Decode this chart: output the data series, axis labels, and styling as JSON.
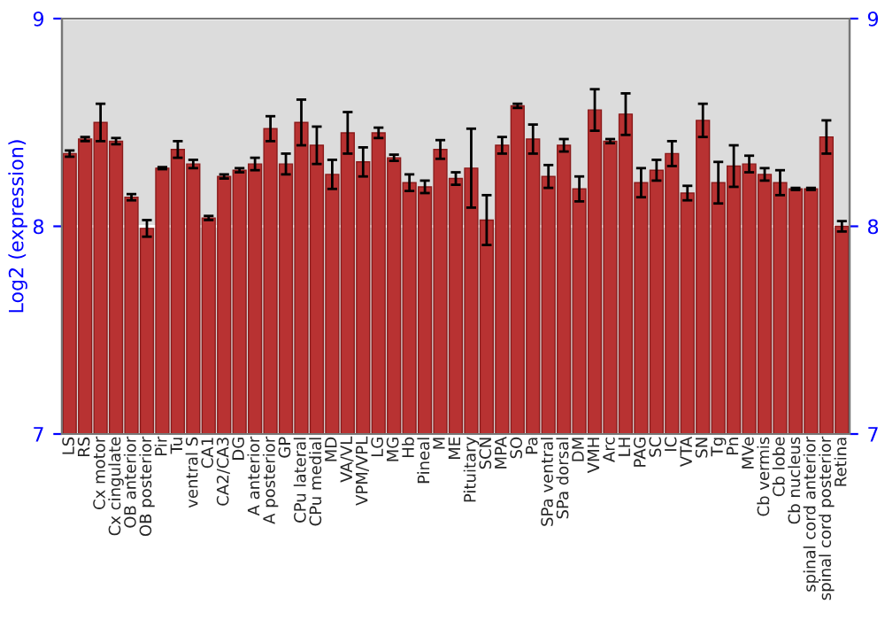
{
  "chart_data": {
    "type": "bar",
    "ylabel": "Log2 (expression)",
    "categories": [
      "LS",
      "RS",
      "Cx motor",
      "Cx cingulate",
      "OB anterior",
      "OB posterior",
      "Pir",
      "Tu",
      "ventral S",
      "CA1",
      "CA2/CA3",
      "DG",
      "A anterior",
      "A posterior",
      "GP",
      "CPu lateral",
      "CPu medial",
      "MD",
      "VA/VL",
      "VPM/VPL",
      "LG",
      "MG",
      "Hb",
      "Pineal",
      "M",
      "ME",
      "Pituitary",
      "SCN",
      "MPA",
      "SO",
      "Pa",
      "SPa ventral",
      "SPa dorsal",
      "DM",
      "VMH",
      "Arc",
      "LH",
      "PAG",
      "SC",
      "IC",
      "VTA",
      "SN",
      "Tg",
      "Pn",
      "MVe",
      "Cb vermis",
      "Cb lobe",
      "Cb nucleus",
      "spinal cord anterior",
      "spinal cord posterior",
      "Retina"
    ],
    "values": [
      8.35,
      8.42,
      8.5,
      8.41,
      8.14,
      7.99,
      8.28,
      8.37,
      8.3,
      8.04,
      8.24,
      8.27,
      8.3,
      8.47,
      8.3,
      8.5,
      8.39,
      8.25,
      8.45,
      8.31,
      8.45,
      8.33,
      8.21,
      8.19,
      8.37,
      8.23,
      8.28,
      8.03,
      8.39,
      8.58,
      8.42,
      8.24,
      8.39,
      8.18,
      8.56,
      8.41,
      8.54,
      8.21,
      8.27,
      8.35,
      8.16,
      8.51,
      8.21,
      8.29,
      8.3,
      8.25,
      8.21,
      8.18,
      8.18,
      8.43,
      8.0
    ],
    "errors": [
      0.015,
      0.01,
      0.09,
      0.015,
      0.015,
      0.04,
      0.005,
      0.04,
      0.02,
      0.01,
      0.01,
      0.01,
      0.03,
      0.06,
      0.05,
      0.11,
      0.09,
      0.07,
      0.1,
      0.07,
      0.025,
      0.015,
      0.04,
      0.03,
      0.045,
      0.03,
      0.19,
      0.12,
      0.04,
      0.01,
      0.07,
      0.055,
      0.03,
      0.06,
      0.1,
      0.01,
      0.1,
      0.07,
      0.05,
      0.06,
      0.035,
      0.08,
      0.1,
      0.1,
      0.04,
      0.03,
      0.06,
      0.005,
      0.005,
      0.08,
      0.025
    ],
    "color": "#b83232",
    "ylim": [
      7,
      9
    ],
    "yticks": [
      7,
      8,
      9
    ],
    "y2lim": [
      7,
      9
    ],
    "y2ticks": [
      7,
      8,
      9
    ],
    "grid": "y"
  }
}
